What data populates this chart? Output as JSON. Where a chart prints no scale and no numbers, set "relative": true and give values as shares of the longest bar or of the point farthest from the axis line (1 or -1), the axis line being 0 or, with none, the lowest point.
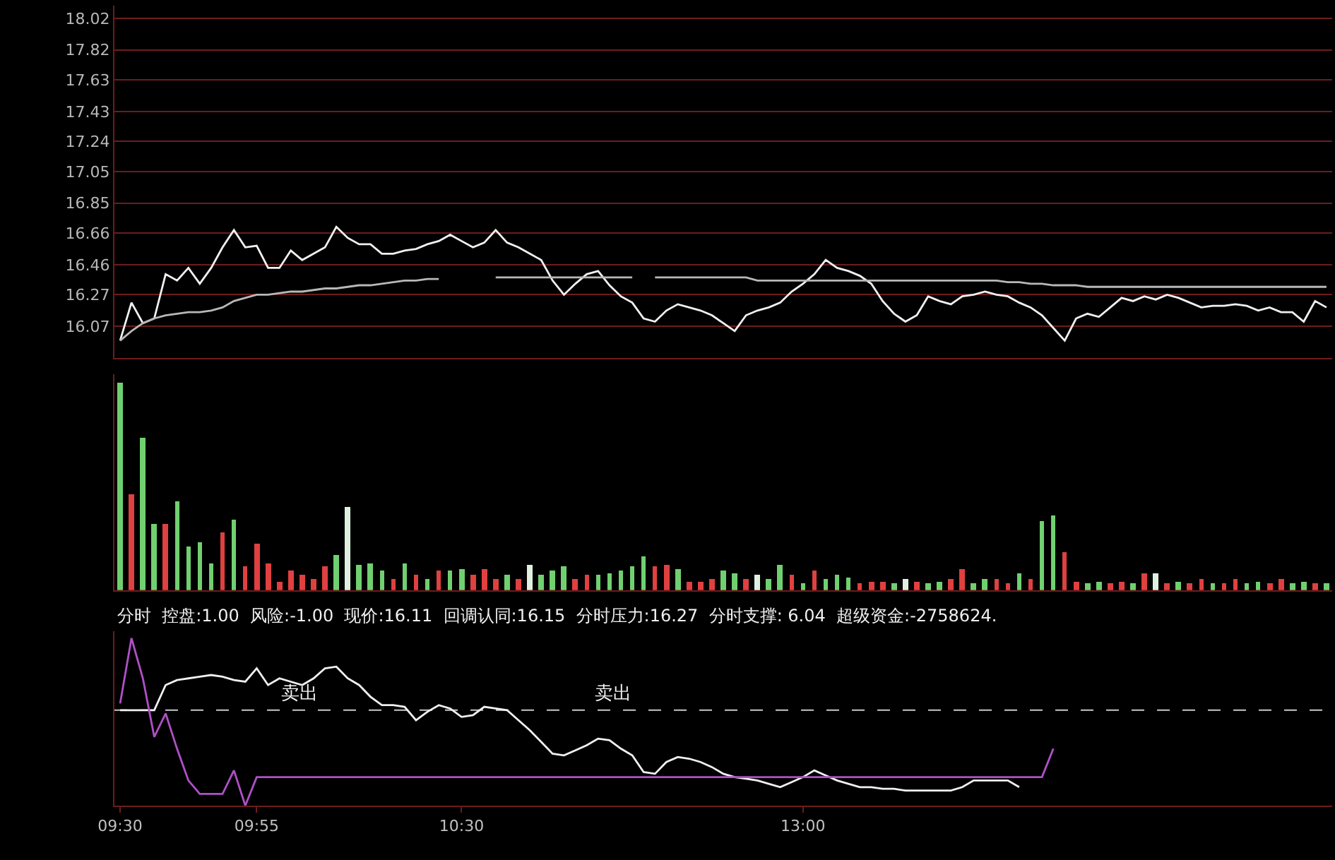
{
  "chart_data": [
    {
      "type": "line",
      "categories": [
        null,
        null,
        null,
        null,
        null,
        null,
        null,
        null,
        null,
        null,
        null,
        null,
        null,
        null,
        null,
        null,
        null,
        null,
        null,
        null,
        null,
        null,
        null,
        null,
        null,
        null,
        null,
        null,
        null,
        null,
        null,
        null,
        null,
        null,
        null,
        null,
        null,
        null,
        null,
        null,
        null,
        null,
        null,
        null,
        null,
        null,
        null,
        null,
        null,
        null,
        null,
        null,
        null,
        null,
        null,
        null,
        null,
        null,
        null,
        null,
        null,
        null,
        null,
        null,
        null,
        null,
        null,
        null,
        null,
        null,
        null,
        null,
        null,
        null,
        null,
        null,
        null,
        null,
        null,
        null,
        null,
        null,
        null,
        null,
        null,
        null,
        null,
        null,
        null,
        null,
        null,
        null,
        null,
        null,
        null,
        null,
        null,
        null,
        null,
        null,
        null,
        null,
        null,
        null,
        null,
        null,
        null
      ],
      "ylim": [
        15.87,
        18.1
      ],
      "yticks": [
        18.02,
        17.82,
        17.63,
        17.43,
        17.24,
        17.05,
        16.85,
        16.66,
        16.46,
        16.27,
        16.07
      ],
      "grid": "y",
      "series": [
        {
          "color": "#f0f0f0",
          "values": [
            15.98,
            16.22,
            16.09,
            16.12,
            16.4,
            16.36,
            16.44,
            16.34,
            16.44,
            16.57,
            16.68,
            16.57,
            16.58,
            16.44,
            16.44,
            16.55,
            16.49,
            16.53,
            16.57,
            16.7,
            16.63,
            16.59,
            16.59,
            16.53,
            16.53,
            16.55,
            16.56,
            16.59,
            16.61,
            16.65,
            16.61,
            16.57,
            16.6,
            16.68,
            16.6,
            16.57,
            16.53,
            16.49,
            16.36,
            16.27,
            16.34,
            16.4,
            16.42,
            16.33,
            16.26,
            16.22,
            16.12,
            16.1,
            16.17,
            16.21,
            16.19,
            16.17,
            16.14,
            16.09,
            16.04,
            16.14,
            16.17,
            16.19,
            16.22,
            16.29,
            16.34,
            16.4,
            16.49,
            16.44,
            16.42,
            16.39,
            16.34,
            16.23,
            16.15,
            16.1,
            16.14,
            16.26,
            16.23,
            16.21,
            16.26,
            16.27,
            16.29,
            16.27,
            16.26,
            16.22,
            16.19,
            16.14,
            16.06,
            15.98,
            16.12,
            16.15,
            16.13,
            16.19,
            16.25,
            16.23,
            16.26,
            16.24,
            16.27,
            16.25,
            16.22,
            16.19,
            16.2,
            16.2,
            16.21,
            16.2,
            16.17,
            16.19,
            16.16,
            16.16,
            16.1,
            16.23,
            16.19
          ]
        },
        {
          "color": "#b8b8b8",
          "values": [
            15.98,
            16.04,
            16.09,
            16.12,
            16.14,
            16.15,
            16.16,
            16.16,
            16.17,
            16.19,
            16.23,
            16.25,
            16.27,
            16.27,
            16.28,
            16.29,
            16.29,
            16.3,
            16.31,
            16.31,
            16.32,
            16.33,
            16.33,
            16.34,
            16.35,
            16.36,
            16.36,
            16.37,
            16.37,
            null,
            null,
            null,
            null,
            16.38,
            16.38,
            16.38,
            16.38,
            16.38,
            16.38,
            16.38,
            16.38,
            16.38,
            16.38,
            16.38,
            16.38,
            16.38,
            null,
            16.38,
            16.38,
            16.38,
            16.38,
            16.38,
            16.38,
            16.38,
            16.38,
            16.38,
            16.36,
            16.36,
            16.36,
            16.36,
            16.36,
            16.36,
            16.36,
            16.36,
            16.36,
            16.36,
            16.36,
            16.36,
            16.36,
            16.36,
            16.36,
            16.36,
            16.36,
            16.36,
            16.36,
            16.36,
            16.36,
            16.36,
            16.35,
            16.35,
            16.34,
            16.34,
            16.33,
            16.33,
            16.33,
            16.32,
            16.32,
            16.32,
            16.32,
            16.32,
            16.32,
            16.32,
            16.32,
            16.32,
            16.32,
            16.32,
            16.32,
            16.32,
            16.32,
            16.32,
            16.32,
            16.32,
            16.32,
            16.32,
            16.32,
            16.32,
            16.32
          ]
        }
      ]
    },
    {
      "type": "bar",
      "relative": true,
      "categories": [
        null,
        null,
        null,
        null,
        null,
        null,
        null,
        null,
        null,
        null,
        null,
        null,
        null,
        null,
        null,
        null,
        null,
        null,
        null,
        null,
        null,
        null,
        null,
        null,
        null,
        null,
        null,
        null,
        null,
        null,
        null,
        null,
        null,
        null,
        null,
        null,
        null,
        null,
        null,
        null,
        null,
        null,
        null,
        null,
        null,
        null,
        null,
        null,
        null,
        null,
        null,
        null,
        null,
        null,
        null,
        null,
        null,
        null,
        null,
        null,
        null,
        null,
        null,
        null,
        null,
        null,
        null,
        null,
        null,
        null,
        null,
        null,
        null,
        null,
        null,
        null,
        null,
        null,
        null,
        null,
        null,
        null,
        null,
        null,
        null,
        null,
        null,
        null,
        null,
        null,
        null,
        null,
        null,
        null,
        null,
        null,
        null,
        null,
        null,
        null,
        null,
        null,
        null,
        null,
        null,
        null,
        null
      ],
      "values": [
        1.0,
        0.46,
        0.73,
        0.32,
        0.32,
        0.43,
        0.21,
        0.23,
        0.13,
        0.28,
        0.34,
        0.11,
        0.22,
        0.13,
        0.04,
        0.09,
        0.07,
        0.05,
        0.11,
        0.17,
        0.4,
        0.12,
        0.13,
        0.09,
        0.05,
        0.13,
        0.07,
        0.05,
        0.09,
        0.09,
        0.1,
        0.07,
        0.1,
        0.05,
        0.07,
        0.05,
        0.12,
        0.07,
        0.09,
        0.11,
        0.05,
        0.07,
        0.07,
        0.08,
        0.09,
        0.11,
        0.16,
        0.11,
        0.12,
        0.1,
        0.04,
        0.04,
        0.05,
        0.09,
        0.08,
        0.05,
        0.07,
        0.05,
        0.12,
        0.07,
        0.03,
        0.09,
        0.05,
        0.07,
        0.06,
        0.03,
        0.04,
        0.04,
        0.03,
        0.05,
        0.04,
        0.03,
        0.04,
        0.05,
        0.1,
        0.03,
        0.05,
        0.05,
        0.03,
        0.08,
        0.05,
        0.33,
        0.36,
        0.18,
        0.04,
        0.03,
        0.04,
        0.03,
        0.04,
        0.03,
        0.08,
        0.08,
        0.03,
        0.04,
        0.03,
        0.05,
        0.03,
        0.03,
        0.05,
        0.03,
        0.04,
        0.03,
        0.05,
        0.03,
        0.04,
        0.03,
        0.03
      ],
      "colors": [
        "#70d070",
        "#e04040",
        "#70d070",
        "#70d070",
        "#e04040",
        "#70d070",
        "#70d070",
        "#70d070",
        "#70d070",
        "#e04040",
        "#70d070",
        "#e04040",
        "#e04040",
        "#e04040",
        "#e04040",
        "#e04040",
        "#e04040",
        "#e04040",
        "#e04040",
        "#70d070",
        "#e0f0e0",
        "#70d070",
        "#70d070",
        "#70d070",
        "#e04040",
        "#70d070",
        "#e04040",
        "#70d070",
        "#e04040",
        "#70d070",
        "#70d070",
        "#e04040",
        "#e04040",
        "#e04040",
        "#70d070",
        "#e04040",
        "#e0f0e0",
        "#70d070",
        "#70d070",
        "#70d070",
        "#e04040",
        "#e04040",
        "#70d070",
        "#70d070",
        "#70d070",
        "#70d070",
        "#70d070",
        "#e04040",
        "#e04040",
        "#70d070",
        "#e04040",
        "#e04040",
        "#e04040",
        "#70d070",
        "#70d070",
        "#e04040",
        "#e0f0e0",
        "#70d070",
        "#70d070",
        "#e04040",
        "#70d070",
        "#e04040",
        "#70d070",
        "#70d070",
        "#70d070",
        "#e04040",
        "#e04040",
        "#e04040",
        "#70d070",
        "#e0f0e0",
        "#e04040",
        "#70d070",
        "#70d070",
        "#e04040",
        "#e04040",
        "#70d070",
        "#70d070",
        "#e04040",
        "#e04040",
        "#70d070",
        "#e04040",
        "#70d070",
        "#70d070",
        "#e04040",
        "#e04040",
        "#70d070",
        "#70d070",
        "#e04040",
        "#e04040",
        "#70d070",
        "#e04040",
        "#e0f0e0",
        "#e04040",
        "#70d070",
        "#e04040",
        "#e04040",
        "#70d070",
        "#e04040",
        "#e04040",
        "#70d070",
        "#70d070",
        "#e04040",
        "#e04040",
        "#70d070",
        "#70d070",
        "#e04040",
        "#70d070"
      ]
    },
    {
      "type": "line",
      "relative": true,
      "categories": [
        "09:30",
        null,
        null,
        null,
        null,
        null,
        null,
        null,
        null,
        null,
        null,
        null,
        "09:55",
        null,
        null,
        null,
        null,
        null,
        null,
        null,
        null,
        null,
        null,
        null,
        null,
        null,
        null,
        null,
        null,
        null,
        "10:30",
        null,
        null,
        null,
        null,
        null,
        null,
        null,
        null,
        null,
        null,
        null,
        null,
        null,
        null,
        null,
        null,
        null,
        null,
        null,
        null,
        null,
        null,
        null,
        null,
        null,
        null,
        null,
        null,
        null,
        "13:00",
        null,
        null,
        null,
        null,
        null,
        null,
        null,
        null,
        null,
        null,
        null,
        null,
        null,
        null,
        null,
        null,
        null,
        null,
        null,
        null,
        null,
        null,
        null,
        null,
        null,
        null,
        null,
        null,
        null,
        null,
        null,
        null,
        null,
        null,
        null,
        null,
        null,
        null,
        null,
        null,
        null,
        null,
        null,
        null,
        null,
        null
      ],
      "tick_labels": "x",
      "series": [
        {
          "color": "#f0f0f0",
          "values": [
            0.57,
            0.57,
            0.57,
            0.57,
            0.72,
            0.75,
            0.76,
            0.77,
            0.78,
            0.77,
            0.75,
            0.74,
            0.82,
            0.72,
            0.76,
            0.74,
            0.72,
            0.76,
            0.82,
            0.83,
            0.76,
            0.72,
            0.65,
            0.6,
            0.6,
            0.59,
            0.51,
            0.56,
            0.6,
            0.58,
            0.53,
            0.54,
            0.59,
            0.58,
            0.57,
            0.51,
            0.45,
            0.38,
            0.31,
            0.3,
            0.33,
            0.36,
            0.4,
            0.39,
            0.34,
            0.3,
            0.2,
            0.19,
            0.26,
            0.29,
            0.28,
            0.26,
            0.23,
            0.19,
            0.17,
            0.16,
            0.15,
            0.13,
            0.11,
            0.14,
            0.17,
            0.21,
            0.18,
            0.15,
            0.13,
            0.11,
            0.11,
            0.1,
            0.1,
            0.09,
            0.09,
            0.09,
            0.09,
            0.09,
            0.11,
            0.15,
            0.15,
            0.15,
            0.15,
            0.11,
            null,
            null,
            null,
            null,
            null,
            null,
            null,
            null,
            null,
            null,
            null,
            null,
            null,
            null,
            null,
            null,
            null,
            null,
            null,
            null,
            null,
            null,
            null,
            null,
            null,
            null,
            null
          ]
        },
        {
          "color": "#b050c8",
          "values": [
            0.61,
            1.0,
            0.76,
            0.41,
            0.55,
            0.34,
            0.15,
            0.07,
            0.07,
            0.07,
            0.21,
            0,
            0.17,
            0.17,
            0.17,
            0.17,
            0.17,
            0.17,
            0.17,
            0.17,
            0.17,
            0.17,
            0.17,
            0.17,
            0.17,
            0.17,
            0.17,
            0.17,
            0.17,
            0.17,
            0.17,
            0.17,
            0.17,
            0.17,
            0.17,
            0.17,
            0.17,
            0.17,
            0.17,
            0.17,
            0.17,
            0.17,
            0.17,
            0.17,
            0.17,
            0.17,
            0.17,
            0.17,
            0.17,
            0.17,
            0.17,
            0.17,
            0.17,
            0.17,
            0.17,
            0.17,
            0.17,
            0.17,
            0.17,
            0.17,
            0.17,
            0.17,
            0.17,
            0.17,
            0.17,
            0.17,
            0.17,
            0.17,
            0.17,
            0.17,
            0.17,
            0.17,
            0.17,
            0.17,
            0.17,
            0.17,
            0.17,
            0.17,
            0.17,
            0.17,
            0.17,
            0.17,
            0.34,
            null,
            null,
            null,
            null,
            null,
            null,
            null,
            null,
            null,
            null,
            null,
            null,
            null,
            null,
            null,
            null,
            null,
            null,
            null,
            null,
            null,
            null,
            null,
            null
          ]
        }
      ],
      "ref_lines": [
        {
          "axis": "y",
          "value": 0.57,
          "color": "#c8c8c8",
          "line_style": "dashed"
        }
      ],
      "annotations": [
        "分时  控盘:1.00  风险:-1.00  现价:16.11  回调认同:16.15  分时压力:16.27  分时支撑: 6.04  超级资金:-2758624.",
        {
          "text": "卖出",
          "y": 0.57
        },
        {
          "text": "卖出",
          "y": 0.57
        }
      ]
    }
  ]
}
